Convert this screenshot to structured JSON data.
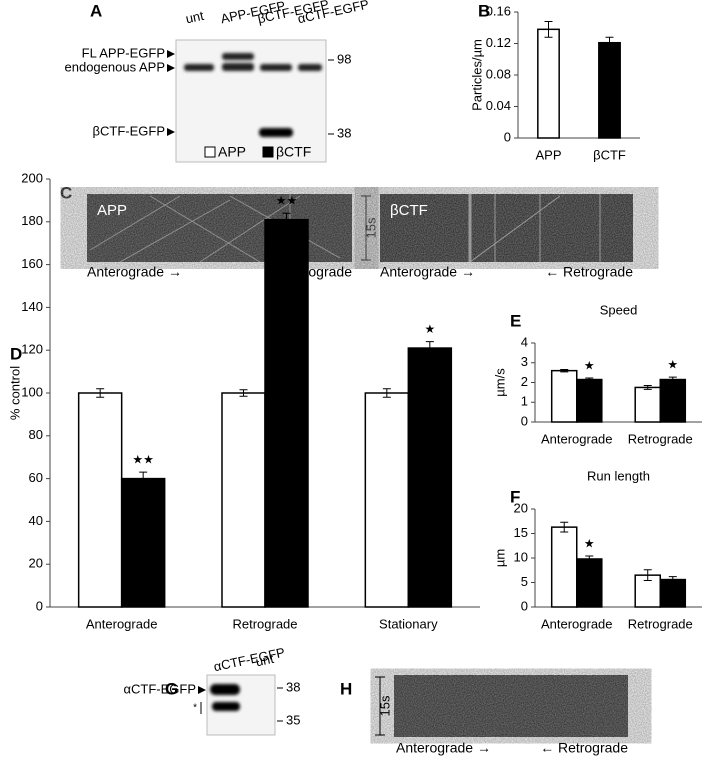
{
  "chart_data": [
    {
      "type": "bar",
      "panel": "B",
      "ylabel": "Particles/µm",
      "categories": [
        "APP",
        "βCTF"
      ],
      "values": [
        0.138,
        0.121
      ],
      "errors": [
        0.01,
        0.007
      ],
      "colors": [
        "#ffffff",
        "#000000"
      ],
      "ylim": [
        0,
        0.16
      ],
      "yticks": [
        0,
        0.04,
        0.08,
        0.12,
        0.16
      ]
    },
    {
      "type": "bar",
      "panel": "D",
      "ylabel": "% control",
      "categories": [
        "Anterograde",
        "Retrograde",
        "Stationary"
      ],
      "series": [
        {
          "name": "APP",
          "color": "#ffffff",
          "values": [
            100,
            100,
            100
          ],
          "errors": [
            2,
            1.5,
            2
          ],
          "annotations": [
            null,
            null,
            null
          ]
        },
        {
          "name": "βCTF",
          "color": "#000000",
          "values": [
            60,
            181,
            121
          ],
          "errors": [
            3,
            3,
            3
          ],
          "annotations": [
            "★★",
            "★★",
            "★"
          ]
        }
      ],
      "ylim": [
        0,
        200
      ],
      "yticks": [
        0,
        20,
        40,
        60,
        80,
        100,
        120,
        140,
        160,
        180,
        200
      ],
      "legend": "top"
    },
    {
      "type": "bar",
      "panel": "E",
      "title": "Speed",
      "ylabel": "µm/s",
      "categories": [
        "Anterograde",
        "Retrograde"
      ],
      "series": [
        {
          "color": "#ffffff",
          "values": [
            2.6,
            1.75
          ],
          "errors": [
            0.06,
            0.1
          ],
          "annotations": [
            null,
            null
          ]
        },
        {
          "color": "#000000",
          "values": [
            2.15,
            2.15
          ],
          "errors": [
            0.08,
            0.12
          ],
          "annotations": [
            "★",
            "★"
          ]
        }
      ],
      "ylim": [
        0,
        4
      ],
      "yticks": [
        0,
        1,
        2,
        3,
        4
      ]
    },
    {
      "type": "bar",
      "panel": "F",
      "title": "Run length",
      "ylabel": "µm",
      "categories": [
        "Anterograde",
        "Retrograde"
      ],
      "series": [
        {
          "color": "#ffffff",
          "values": [
            16.3,
            6.5
          ],
          "errors": [
            1,
            1.1
          ],
          "annotations": [
            null,
            null
          ]
        },
        {
          "color": "#000000",
          "values": [
            9.8,
            5.6
          ],
          "errors": [
            0.6,
            0.6
          ],
          "annotations": [
            "★",
            null
          ]
        }
      ],
      "ylim": [
        0,
        20
      ],
      "yticks": [
        0,
        5,
        10,
        15,
        20
      ]
    }
  ],
  "blot_a": {
    "panel": "A",
    "lanes": [
      "unt",
      "APP-EGFP",
      "βCTF-EGFP",
      "αCTF-EGFP"
    ],
    "bands": [
      "FL APP-EGFP",
      "endogenous APP",
      "βCTF-EGFP"
    ],
    "markers": [
      98,
      38
    ]
  },
  "kymographs_c": {
    "panel": "C",
    "scale": "15s",
    "images": [
      {
        "label": "APP",
        "left": "Anterograde →",
        "right": "← Retrograde"
      },
      {
        "label": "βCTF",
        "left": "Anterograde →",
        "right": "← Retrograde"
      }
    ]
  },
  "blot_g": {
    "panel": "G",
    "lanes": [
      "αCTF-EGFP",
      "unt"
    ],
    "bands": [
      "αCTF-EGFP",
      "*"
    ],
    "markers": [
      38,
      35
    ]
  },
  "kymograph_h": {
    "panel": "H",
    "scale": "15s",
    "left": "Anterograde →",
    "right": "← Retrograde"
  }
}
